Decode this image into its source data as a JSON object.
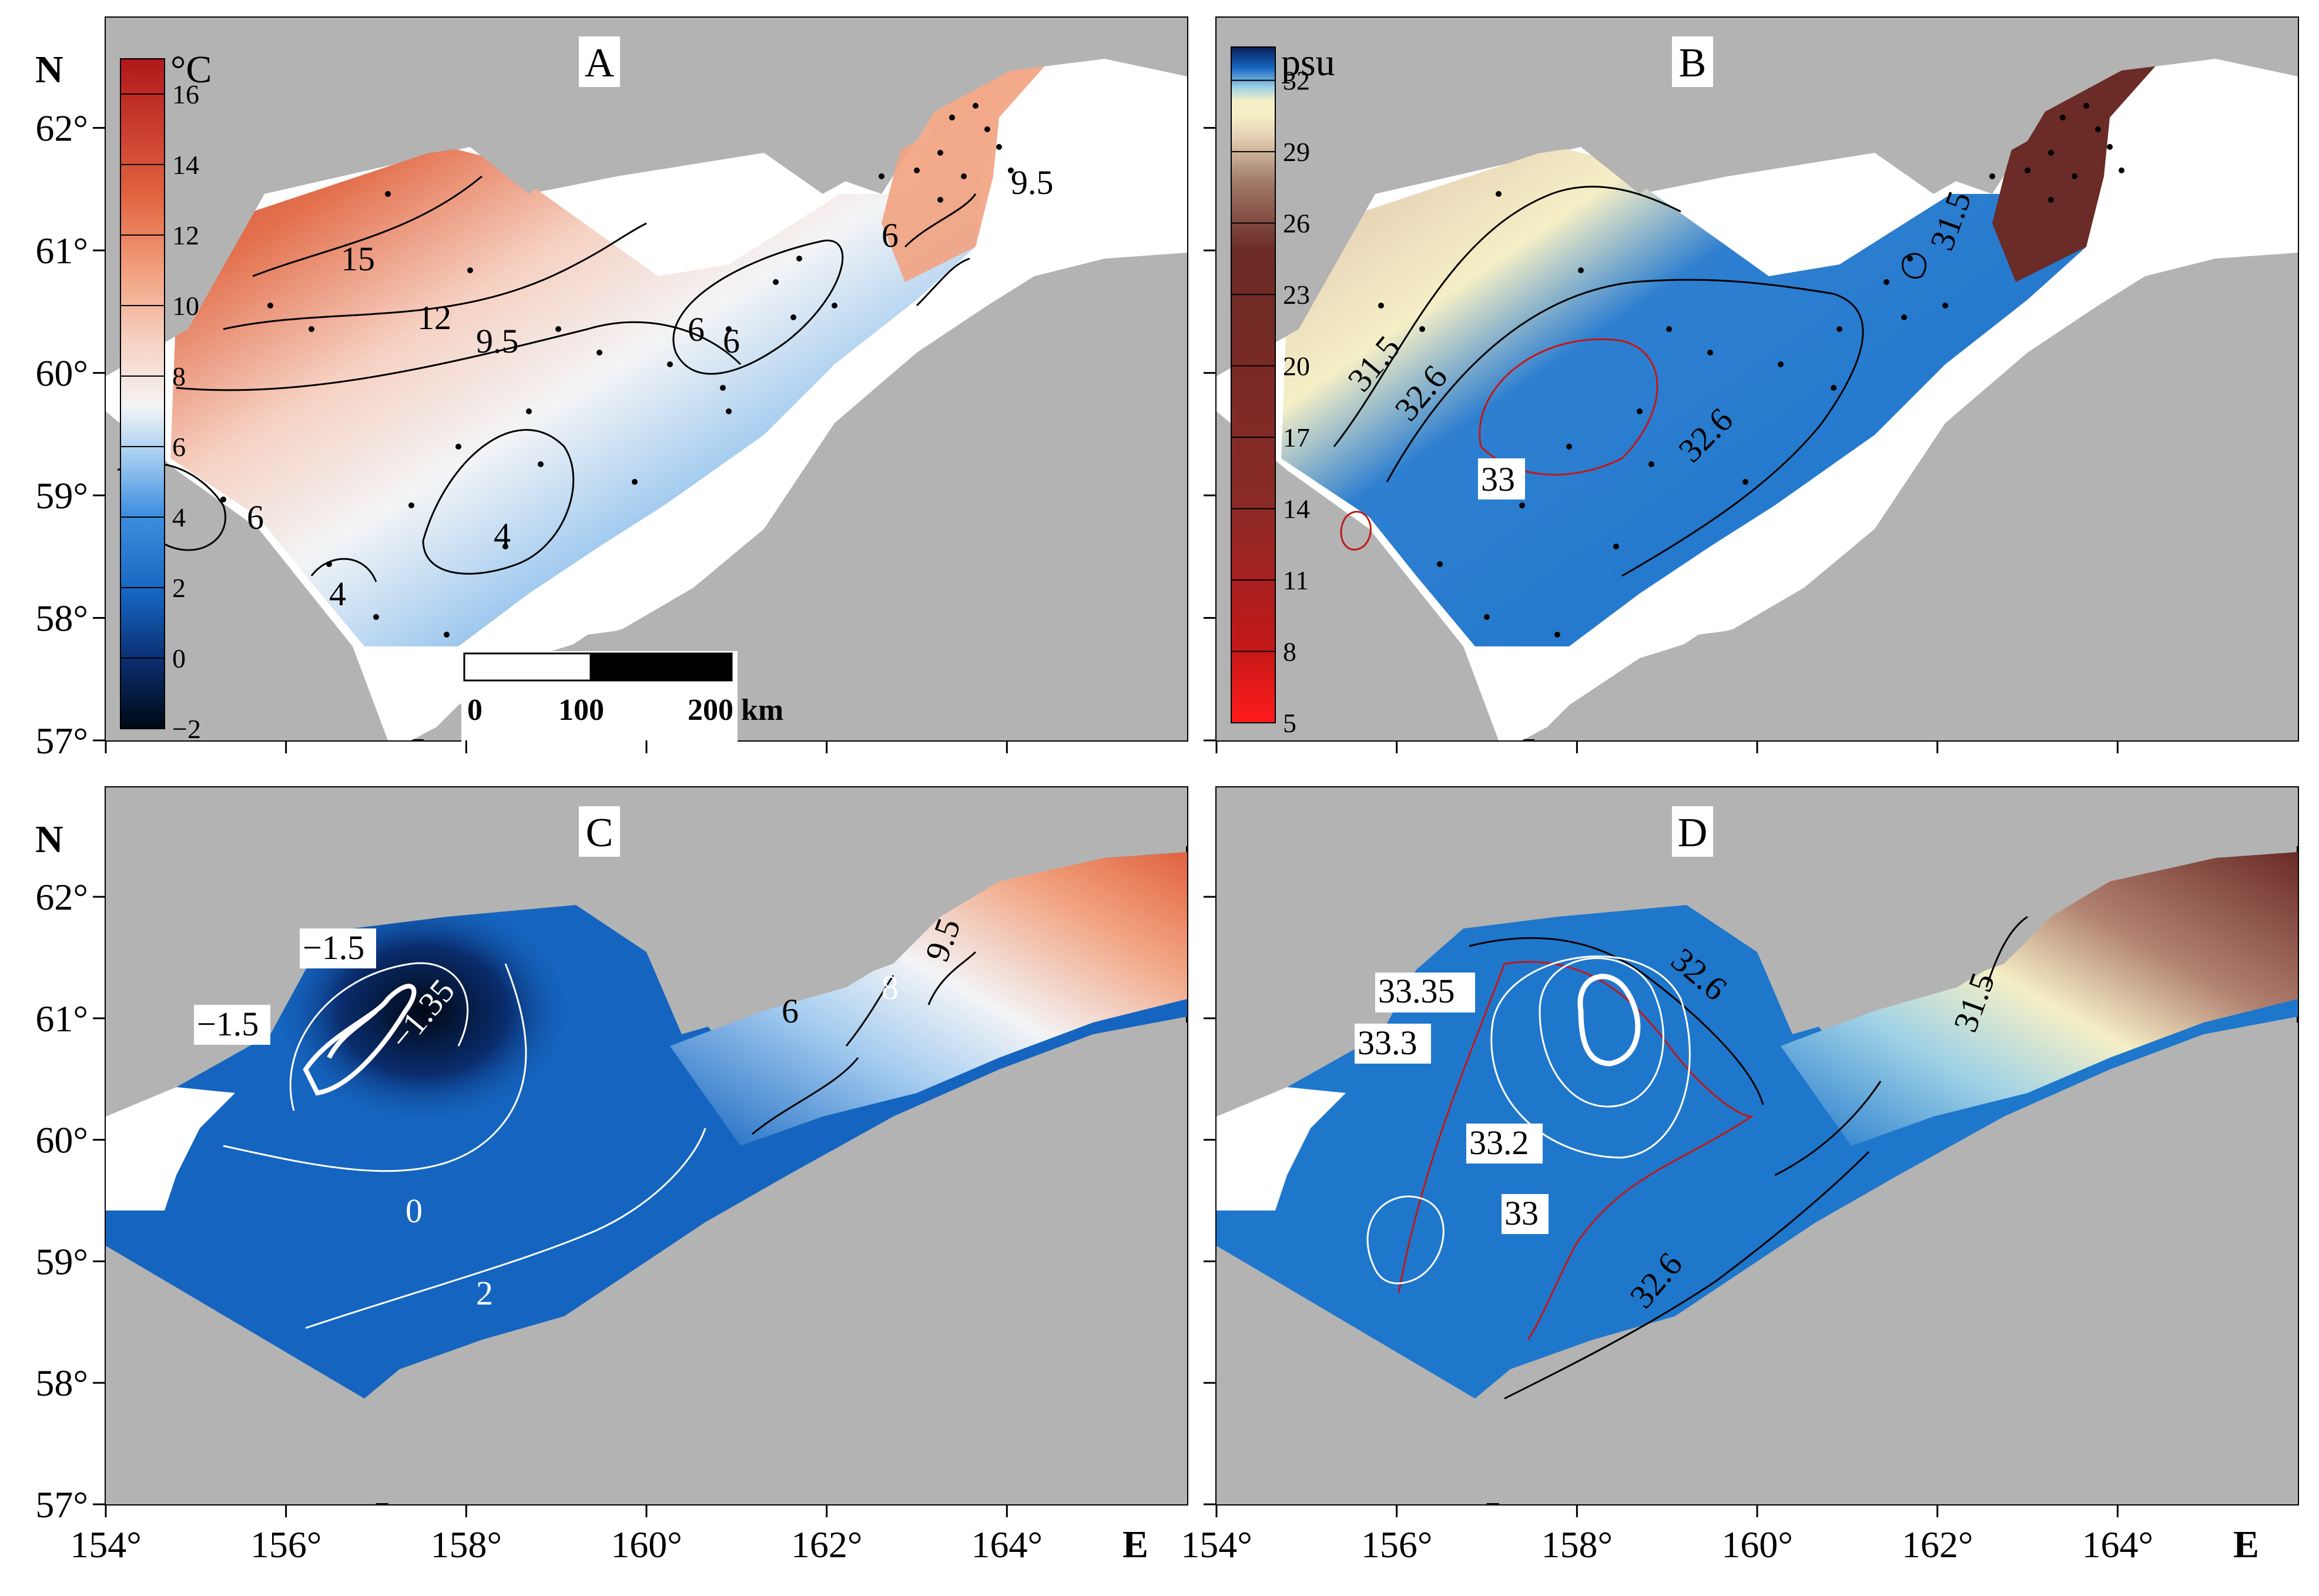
{
  "panels": [
    {
      "id": "A",
      "letter": "A",
      "variable": "temperature"
    },
    {
      "id": "B",
      "letter": "B",
      "variable": "salinity"
    },
    {
      "id": "C",
      "letter": "C",
      "variable": "temperature"
    },
    {
      "id": "D",
      "letter": "D",
      "variable": "salinity"
    }
  ],
  "axes": {
    "lat_letter": "N",
    "lon_letter": "E",
    "lat_ticks": [
      "57°",
      "58°",
      "59°",
      "60°",
      "61°",
      "62°"
    ],
    "lon_ticks": [
      "154°",
      "156°",
      "158°",
      "160°",
      "162°",
      "164°"
    ],
    "lat_range": [
      57,
      62.9
    ],
    "lon_range": [
      154,
      166
    ]
  },
  "colorbars": {
    "temperature": {
      "unit": "°C",
      "ticks": [
        "16",
        "14",
        "12",
        "10",
        "8",
        "6",
        "4",
        "2",
        "0",
        "−2"
      ],
      "range": [
        -2,
        17
      ]
    },
    "salinity": {
      "unit": "psu",
      "ticks": [
        "32",
        "29",
        "26",
        "23",
        "20",
        "17",
        "14",
        "11",
        "8",
        "5"
      ],
      "range": [
        5,
        33.4
      ]
    }
  },
  "scale_bar": {
    "labels": [
      "0",
      "100",
      "200 km"
    ]
  },
  "contour_labels": {
    "A": [
      "15",
      "12",
      "9.5",
      "9.5",
      "6",
      "6",
      "6",
      "4",
      "4",
      "6"
    ],
    "B": [
      "31.5",
      "32.6",
      "32.6",
      "33",
      "31.5"
    ],
    "C": [
      "−1.5",
      "−1.5",
      "−1.35",
      "0",
      "2",
      "6",
      "8",
      "9.5"
    ],
    "D": [
      "32.6",
      "33.35",
      "33.3",
      "33.2",
      "33",
      "32.6",
      "31.5"
    ]
  },
  "colors": {
    "land": "#b3b3b3",
    "warm": "#c0392b",
    "cold": "#1565c0",
    "brown": "#6b2b26",
    "cream": "#f5efc6",
    "contour_red": "#c01818",
    "contour_white": "#ffffff",
    "contour_black": "#000000"
  }
}
